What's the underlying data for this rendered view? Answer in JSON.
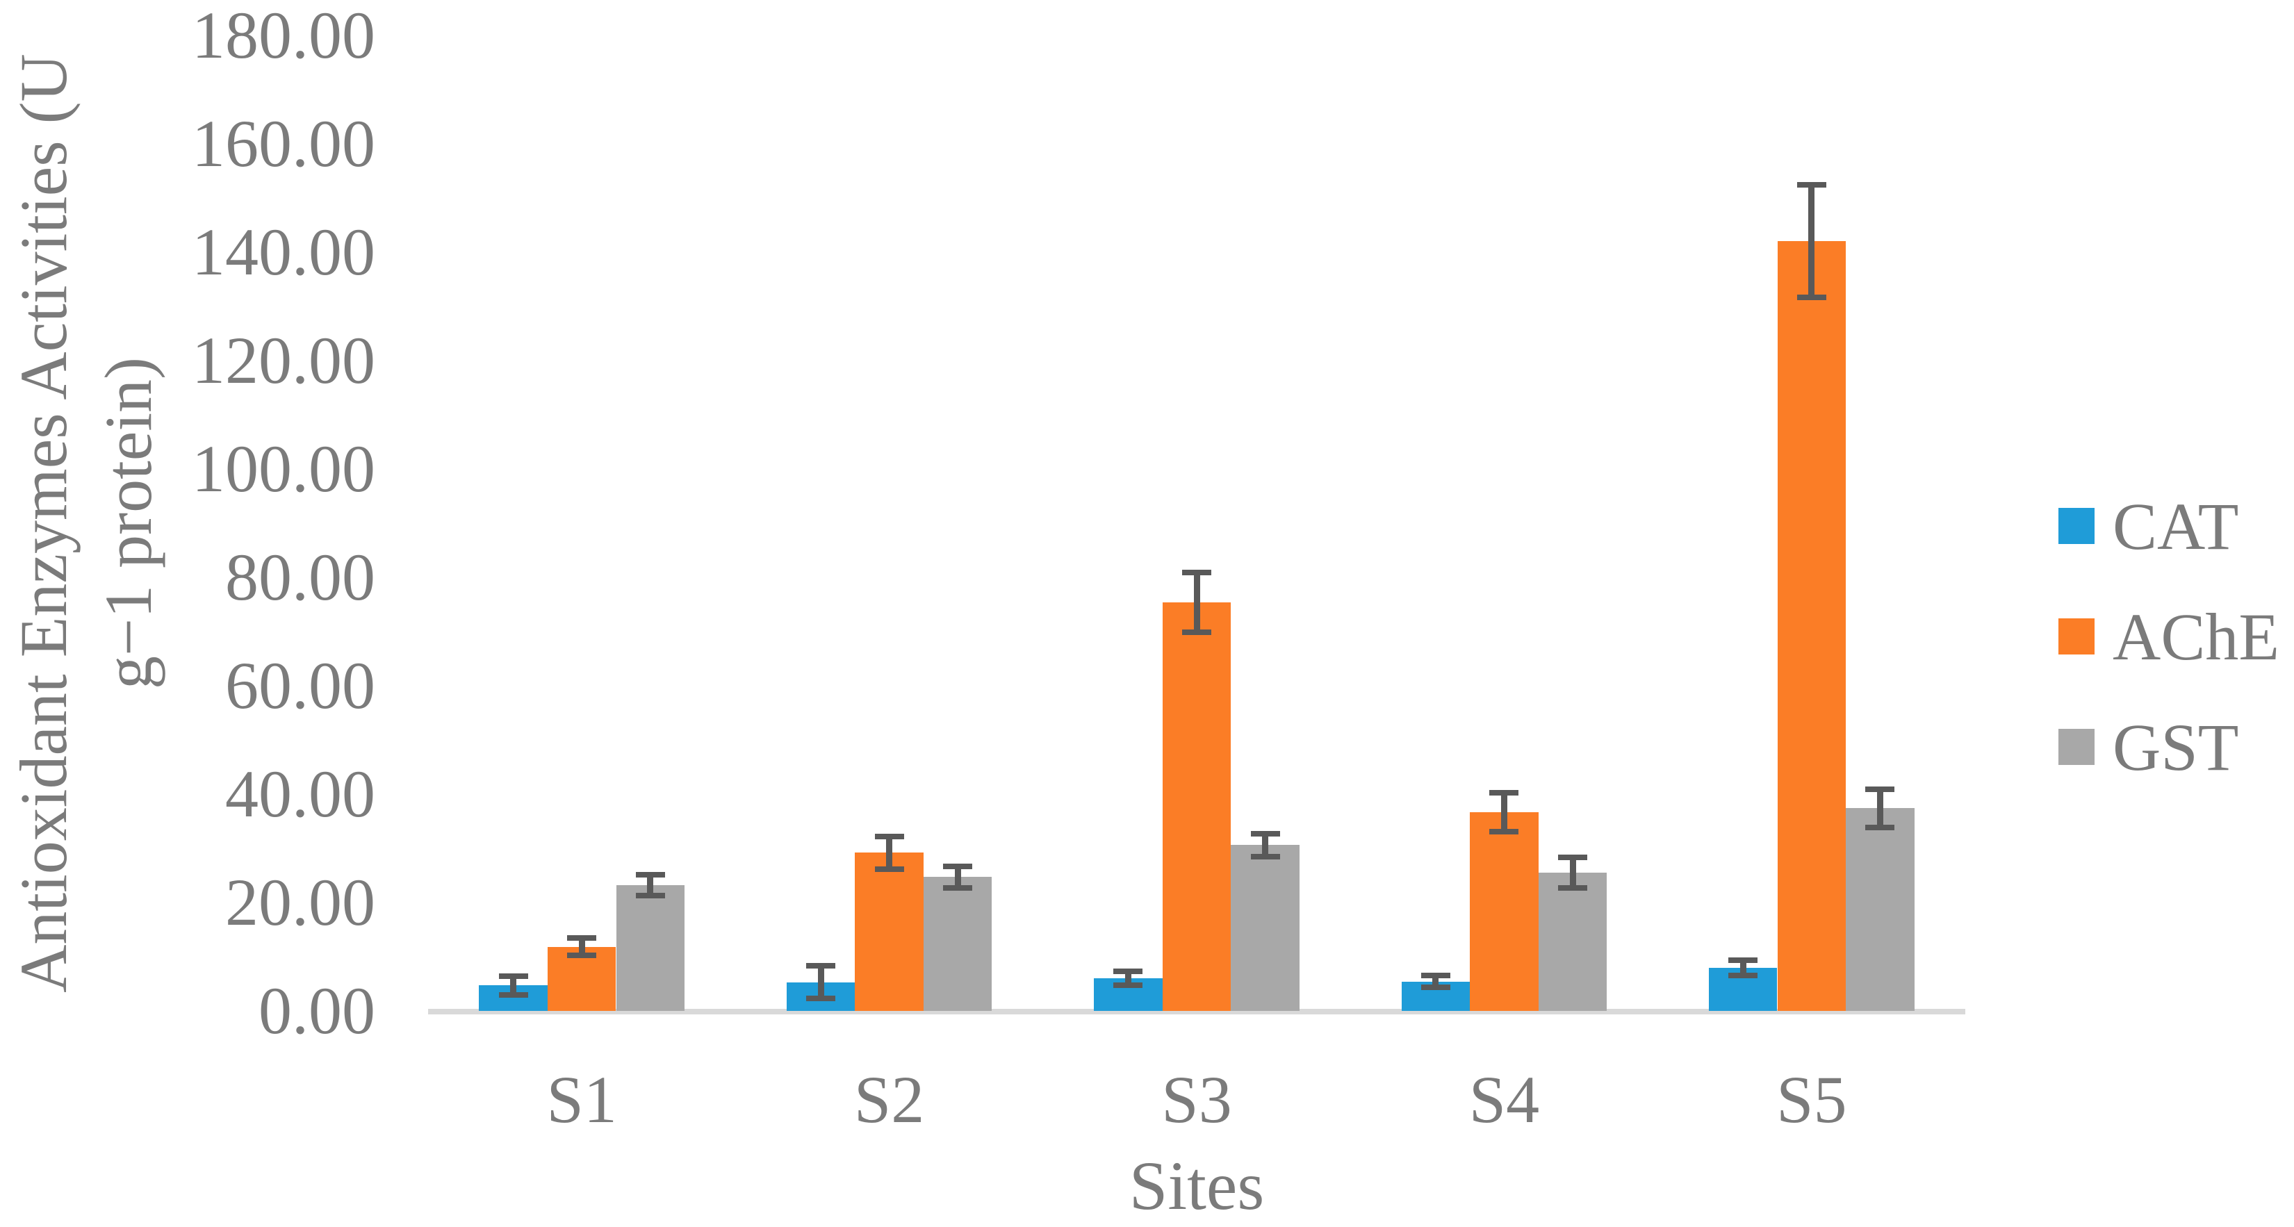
{
  "figure": {
    "ylabel_line1": "Antioxidant Enzymes Activities (U",
    "ylabel_line2": "g−1 protein)",
    "xlabel": "Sites"
  },
  "colors": {
    "cat_series": "#1f9cd8",
    "ache_series": "#fb7d26",
    "gst_series": "#a8a8a8",
    "error_bar": "#595959",
    "axis_line": "#d9d9d9",
    "text": "#7b7b7b",
    "background": "#ffffff"
  },
  "chart_data": {
    "type": "bar",
    "title": "",
    "xlabel": "Sites",
    "ylabel": "Antioxidant Enzymes Activities (U g−1 protein)",
    "categories": [
      "S1",
      "S2",
      "S3",
      "S4",
      "S5"
    ],
    "series": [
      {
        "name": "CAT",
        "color": "#1f9cd8",
        "values": [
          4.7,
          5.3,
          6.0,
          5.4,
          7.9
        ],
        "errors": [
          1.7,
          3.0,
          1.3,
          1.1,
          1.4
        ]
      },
      {
        "name": "AChE",
        "color": "#fb7d26",
        "values": [
          11.8,
          29.2,
          75.4,
          36.7,
          142.1
        ],
        "errors": [
          1.6,
          3.0,
          5.5,
          3.6,
          10.4
        ]
      },
      {
        "name": "GST",
        "color": "#a8a8a8",
        "values": [
          23.2,
          24.7,
          30.6,
          25.5,
          37.4
        ],
        "errors": [
          1.9,
          2.0,
          2.1,
          2.8,
          3.5
        ]
      }
    ],
    "ylim": [
      0,
      180
    ],
    "ytick_step": 20,
    "ytick_labels": [
      "0.00",
      "20.00",
      "40.00",
      "60.00",
      "80.00",
      "100.00",
      "120.00",
      "140.00",
      "160.00",
      "180.00"
    ],
    "grid": false,
    "legend_position": "right",
    "error_bars": true
  }
}
